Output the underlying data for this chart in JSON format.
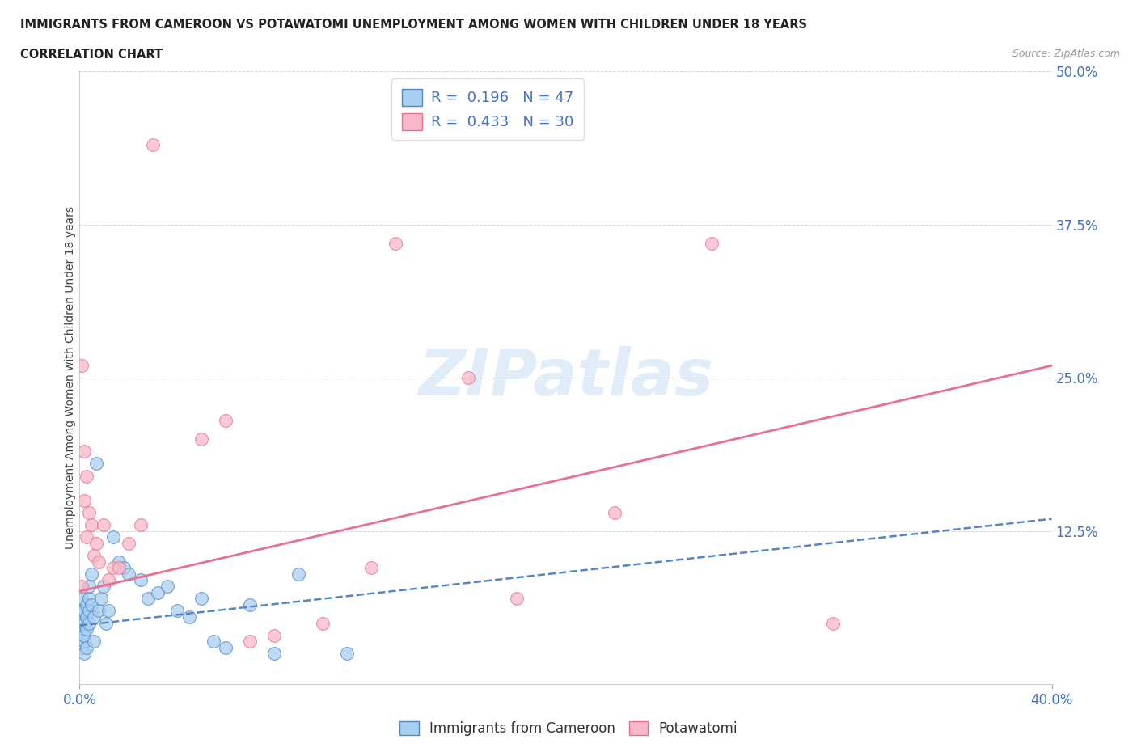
{
  "title": "IMMIGRANTS FROM CAMEROON VS POTAWATOMI UNEMPLOYMENT AMONG WOMEN WITH CHILDREN UNDER 18 YEARS",
  "subtitle": "CORRELATION CHART",
  "source": "Source: ZipAtlas.com",
  "ylabel": "Unemployment Among Women with Children Under 18 years",
  "right_yticks": [
    0.0,
    0.125,
    0.25,
    0.375,
    0.5
  ],
  "right_yticklabels": [
    "",
    "12.5%",
    "25.0%",
    "37.5%",
    "50.0%"
  ],
  "xlim": [
    0.0,
    0.4
  ],
  "ylim": [
    0.0,
    0.5
  ],
  "blue_R": 0.196,
  "blue_N": 47,
  "pink_R": 0.433,
  "pink_N": 30,
  "blue_color": "#A8D0F0",
  "pink_color": "#F8B8C8",
  "blue_line_color": "#5585C8",
  "pink_line_color": "#E87090",
  "legend_label_blue": "Immigrants from Cameroon",
  "legend_label_pink": "Potawatomi",
  "blue_dots_x": [
    0.001,
    0.001,
    0.001,
    0.001,
    0.001,
    0.001,
    0.002,
    0.002,
    0.002,
    0.002,
    0.002,
    0.002,
    0.003,
    0.003,
    0.003,
    0.003,
    0.004,
    0.004,
    0.004,
    0.004,
    0.005,
    0.005,
    0.006,
    0.006,
    0.007,
    0.008,
    0.009,
    0.01,
    0.011,
    0.012,
    0.014,
    0.016,
    0.018,
    0.02,
    0.025,
    0.028,
    0.032,
    0.036,
    0.04,
    0.045,
    0.05,
    0.055,
    0.06,
    0.07,
    0.08,
    0.09,
    0.11
  ],
  "blue_dots_y": [
    0.04,
    0.05,
    0.055,
    0.06,
    0.07,
    0.03,
    0.045,
    0.05,
    0.06,
    0.035,
    0.04,
    0.025,
    0.055,
    0.065,
    0.03,
    0.045,
    0.06,
    0.07,
    0.08,
    0.05,
    0.065,
    0.09,
    0.035,
    0.055,
    0.18,
    0.06,
    0.07,
    0.08,
    0.05,
    0.06,
    0.12,
    0.1,
    0.095,
    0.09,
    0.085,
    0.07,
    0.075,
    0.08,
    0.06,
    0.055,
    0.07,
    0.035,
    0.03,
    0.065,
    0.025,
    0.09,
    0.025
  ],
  "pink_dots_x": [
    0.001,
    0.001,
    0.002,
    0.002,
    0.003,
    0.003,
    0.004,
    0.005,
    0.006,
    0.007,
    0.008,
    0.01,
    0.012,
    0.014,
    0.016,
    0.02,
    0.025,
    0.03,
    0.05,
    0.06,
    0.07,
    0.08,
    0.1,
    0.12,
    0.13,
    0.16,
    0.18,
    0.22,
    0.26,
    0.31
  ],
  "pink_dots_y": [
    0.08,
    0.26,
    0.15,
    0.19,
    0.17,
    0.12,
    0.14,
    0.13,
    0.105,
    0.115,
    0.1,
    0.13,
    0.085,
    0.095,
    0.095,
    0.115,
    0.13,
    0.44,
    0.2,
    0.215,
    0.035,
    0.04,
    0.05,
    0.095,
    0.36,
    0.25,
    0.07,
    0.14,
    0.36,
    0.05
  ],
  "blue_trend_x": [
    0.0,
    0.4
  ],
  "blue_trend_y": [
    0.048,
    0.135
  ],
  "pink_trend_x": [
    0.0,
    0.4
  ],
  "pink_trend_y": [
    0.076,
    0.26
  ],
  "background_color": "#FFFFFF",
  "grid_color": "#CCCCCC"
}
